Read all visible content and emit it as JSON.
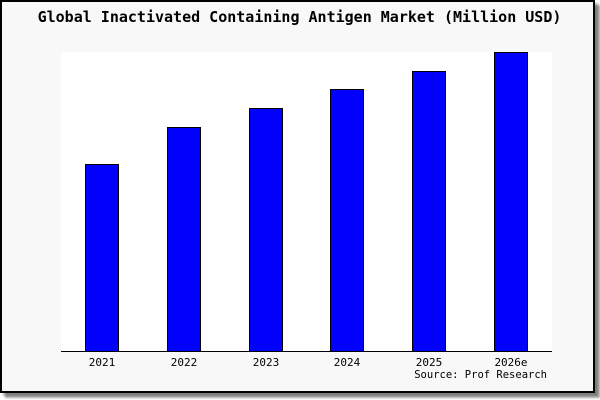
{
  "title": "Global Inactivated Containing Antigen Market (Million USD)",
  "source": "Source: Prof Research",
  "colors": {
    "bar_fill": "#0000fc",
    "bar_border": "#000000",
    "frame_background": "#f8f8f8",
    "plot_background": "#ffffff",
    "axis_line": "#000000",
    "text": "#000000"
  },
  "chart_data": {
    "type": "bar",
    "title": "Global Inactivated Containing Antigen Market (Million USD)",
    "categories": [
      "2021",
      "2022",
      "2023",
      "2024",
      "2025",
      "2026e"
    ],
    "values": [
      62.5,
      74.9,
      81.3,
      87.6,
      93.6,
      100
    ],
    "value_units": "percent of tallest bar (chart shows no y-axis tick labels)",
    "xlabel": "",
    "ylabel": "",
    "ylim": [
      0,
      100
    ],
    "grid": false,
    "legend": false,
    "y_axis_labels_shown": false,
    "bar_color": "#0000fc",
    "source_note": "Source: Prof Research"
  }
}
